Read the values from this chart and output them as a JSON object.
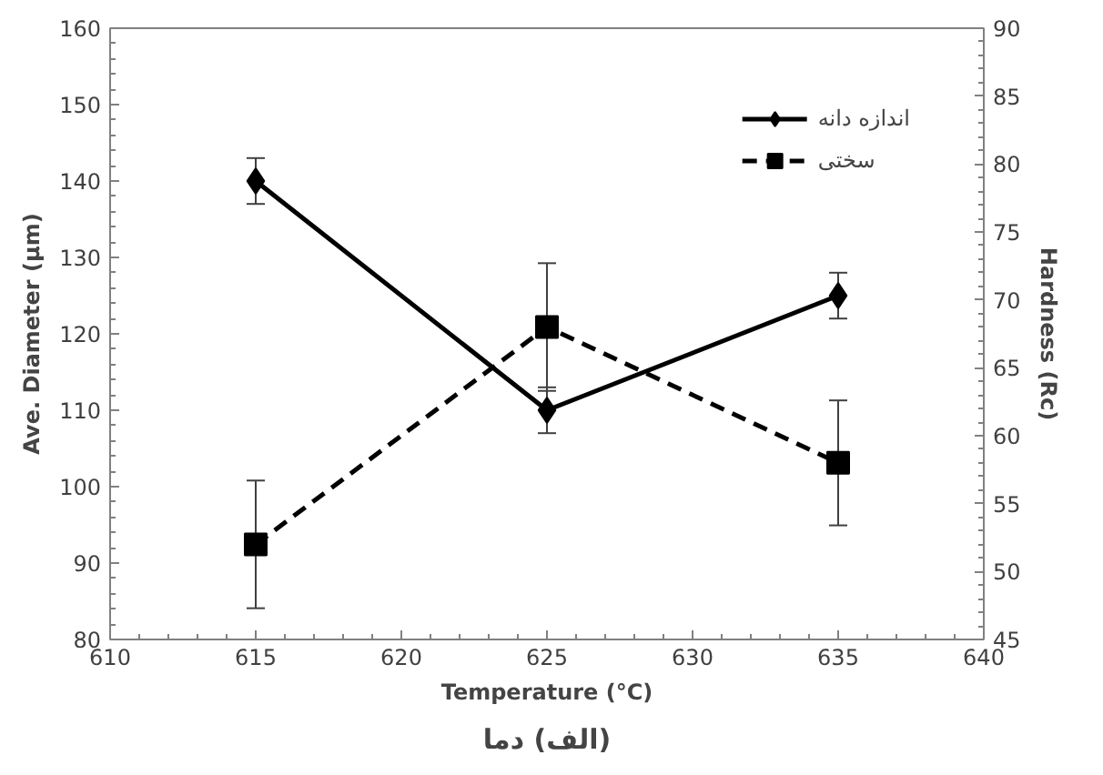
{
  "chart_data": {
    "type": "line",
    "xlabel": "Temperature (°C)",
    "ylabel": "Ave. Diameter (μm)",
    "y2label": "Hardness (Rc)",
    "x": [
      615,
      625,
      635
    ],
    "series": [
      {
        "name": "اندازه دانه",
        "color": "#000000",
        "values": [
          140,
          110,
          125
        ],
        "errors": [
          3,
          3,
          3
        ],
        "marker": "diamond",
        "line_style": "solid"
      },
      {
        "name": "سختی",
        "color": "#000000",
        "values": [
          52,
          68,
          58
        ],
        "errors": [
          4.7,
          4.7,
          4.6
        ],
        "marker": "square",
        "line_style": "dashed",
        "axis": "y2"
      }
    ],
    "xlim": [
      610,
      640
    ],
    "xticks": [
      610,
      615,
      620,
      625,
      630,
      635,
      640
    ],
    "ylim": [
      80,
      160
    ],
    "yticks": [
      80,
      90,
      100,
      110,
      120,
      130,
      140,
      150,
      160
    ],
    "y2lim": [
      45,
      90
    ],
    "y2ticks": [
      45,
      50,
      55,
      60,
      65,
      70,
      75,
      80,
      85,
      90
    ],
    "legend": "top right",
    "grid": false,
    "annotations": [
      "(الف) دما"
    ]
  }
}
